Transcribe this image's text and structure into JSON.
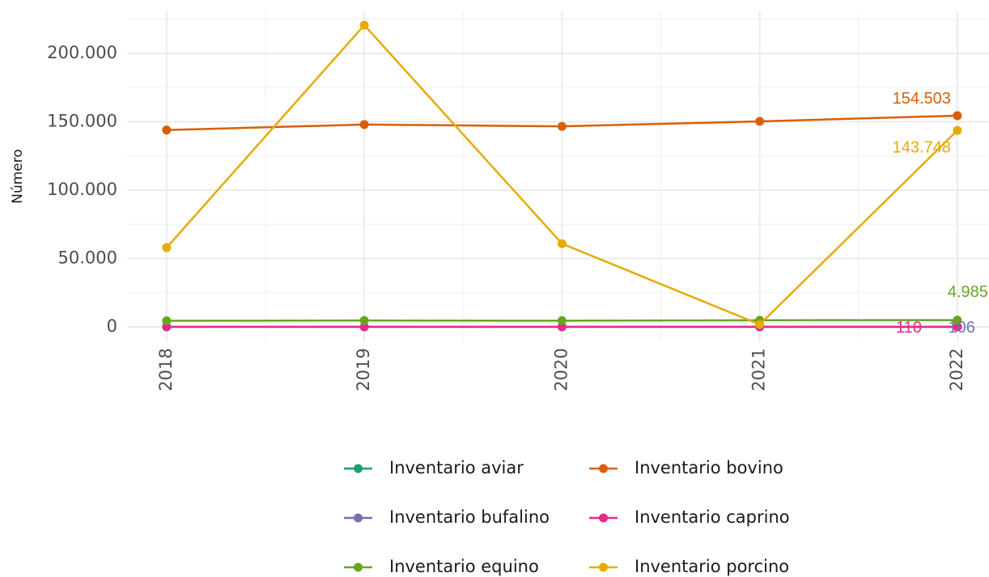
{
  "chart_data": {
    "type": "line",
    "y_label": "Número",
    "x": [
      2018,
      2019,
      2020,
      2021,
      2022
    ],
    "xlim": [
      2017.8,
      2022.16
    ],
    "xticks": [
      2018,
      2019,
      2020,
      2021,
      2022
    ],
    "ylim": [
      -10650,
      230800
    ],
    "yticks": [
      0,
      {
        "value": 50000,
        "label": "50.000"
      },
      {
        "value": 100000,
        "label": "100.000"
      },
      {
        "value": 150000,
        "label": "150.000"
      },
      {
        "value": 200000,
        "label": "200.000"
      }
    ],
    "grid": true,
    "legend_position": "bottom",
    "series": [
      {
        "name": "Inventario aviar",
        "color": "#1b9e77",
        "values": [
          null,
          null,
          null,
          null,
          null
        ]
      },
      {
        "name": "Inventario bovino",
        "color": "#d95f02",
        "values": [
          144000,
          148000,
          146700,
          150300,
          154503
        ],
        "value_labels": [
          null,
          null,
          null,
          null,
          "154.503"
        ]
      },
      {
        "name": "Inventario bufalino",
        "color": "#7570b3",
        "values": [
          100,
          100,
          100,
          100,
          106
        ],
        "value_labels": [
          null,
          null,
          null,
          null,
          "106"
        ]
      },
      {
        "name": "Inventario caprino",
        "color": "#e7298a",
        "values": [
          100,
          100,
          100,
          100,
          110
        ],
        "value_labels": [
          null,
          null,
          null,
          null,
          "110"
        ]
      },
      {
        "name": "Inventario equino",
        "color": "#66a61e",
        "values": [
          4500,
          4700,
          4600,
          4900,
          4985
        ],
        "value_labels": [
          null,
          null,
          null,
          null,
          "4.985"
        ]
      },
      {
        "name": "Inventario porcino",
        "color": "#e6ab02",
        "values": [
          58000,
          220700,
          60900,
          1800,
          143748
        ],
        "value_labels": [
          null,
          null,
          null,
          null,
          "143.748"
        ]
      }
    ]
  }
}
